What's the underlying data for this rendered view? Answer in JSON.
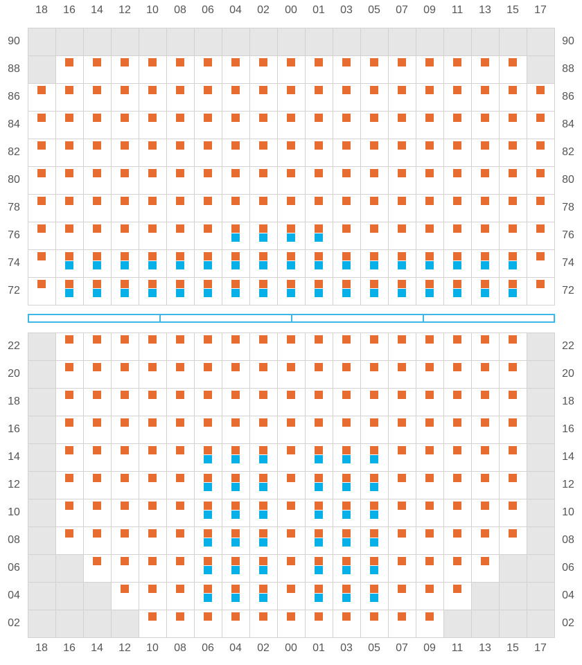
{
  "column_labels": [
    "18",
    "16",
    "14",
    "12",
    "10",
    "08",
    "06",
    "04",
    "02",
    "00",
    "01",
    "03",
    "05",
    "07",
    "09",
    "11",
    "13",
    "15",
    "17"
  ],
  "colors": {
    "grid_line": "#d2d2d2",
    "unavailable_cell": "#e6e6e7",
    "orange_marker": "#e86c30",
    "blue_marker": "#07b0e8",
    "aisle_outline": "#3db8e6",
    "label_text": "#555555"
  },
  "upper_section": {
    "rows": [
      {
        "label": "90",
        "inactive": [
          0,
          1,
          2,
          3,
          4,
          5,
          6,
          7,
          8,
          9,
          10,
          11,
          12,
          13,
          14,
          15,
          16,
          17,
          18
        ],
        "orange": [],
        "blue": []
      },
      {
        "label": "88",
        "inactive": [
          0,
          18
        ],
        "orange": [
          1,
          2,
          3,
          4,
          5,
          6,
          7,
          8,
          9,
          10,
          11,
          12,
          13,
          14,
          15,
          16,
          17
        ],
        "blue": []
      },
      {
        "label": "86",
        "inactive": [],
        "orange": [
          0,
          1,
          2,
          3,
          4,
          5,
          6,
          7,
          8,
          9,
          10,
          11,
          12,
          13,
          14,
          15,
          16,
          17,
          18
        ],
        "blue": []
      },
      {
        "label": "84",
        "inactive": [],
        "orange": [
          0,
          1,
          2,
          3,
          4,
          5,
          6,
          7,
          8,
          9,
          10,
          11,
          12,
          13,
          14,
          15,
          16,
          17,
          18
        ],
        "blue": []
      },
      {
        "label": "82",
        "inactive": [],
        "orange": [
          0,
          1,
          2,
          3,
          4,
          5,
          6,
          7,
          8,
          9,
          10,
          11,
          12,
          13,
          14,
          15,
          16,
          17,
          18
        ],
        "blue": []
      },
      {
        "label": "80",
        "inactive": [],
        "orange": [
          0,
          1,
          2,
          3,
          4,
          5,
          6,
          7,
          8,
          9,
          10,
          11,
          12,
          13,
          14,
          15,
          16,
          17,
          18
        ],
        "blue": []
      },
      {
        "label": "78",
        "inactive": [],
        "orange": [
          0,
          1,
          2,
          3,
          4,
          5,
          6,
          7,
          8,
          9,
          10,
          11,
          12,
          13,
          14,
          15,
          16,
          17,
          18
        ],
        "blue": []
      },
      {
        "label": "76",
        "inactive": [],
        "orange": [
          0,
          1,
          2,
          3,
          4,
          5,
          6,
          7,
          8,
          9,
          10,
          11,
          12,
          13,
          14,
          15,
          16,
          17,
          18
        ],
        "blue": [
          7,
          8,
          9,
          10
        ]
      },
      {
        "label": "74",
        "inactive": [],
        "orange": [
          0,
          1,
          2,
          3,
          4,
          5,
          6,
          7,
          8,
          9,
          10,
          11,
          12,
          13,
          14,
          15,
          16,
          17,
          18
        ],
        "blue": [
          1,
          2,
          3,
          4,
          5,
          6,
          7,
          8,
          9,
          10,
          11,
          12,
          13,
          14,
          15,
          16,
          17
        ]
      },
      {
        "label": "72",
        "inactive": [],
        "orange": [
          0,
          1,
          2,
          3,
          4,
          5,
          6,
          7,
          8,
          9,
          10,
          11,
          12,
          13,
          14,
          15,
          16,
          17,
          18
        ],
        "blue": [
          1,
          2,
          3,
          4,
          5,
          6,
          7,
          8,
          9,
          10,
          11,
          12,
          13,
          14,
          15,
          16,
          17
        ]
      }
    ]
  },
  "aisle": {
    "segments": 4
  },
  "lower_section": {
    "rows": [
      {
        "label": "22",
        "inactive": [
          0,
          18
        ],
        "orange": [
          1,
          2,
          3,
          4,
          5,
          6,
          7,
          8,
          9,
          10,
          11,
          12,
          13,
          14,
          15,
          16,
          17
        ],
        "blue": []
      },
      {
        "label": "20",
        "inactive": [
          0,
          18
        ],
        "orange": [
          1,
          2,
          3,
          4,
          5,
          6,
          7,
          8,
          9,
          10,
          11,
          12,
          13,
          14,
          15,
          16,
          17
        ],
        "blue": []
      },
      {
        "label": "18",
        "inactive": [
          0,
          18
        ],
        "orange": [
          1,
          2,
          3,
          4,
          5,
          6,
          7,
          8,
          9,
          10,
          11,
          12,
          13,
          14,
          15,
          16,
          17
        ],
        "blue": []
      },
      {
        "label": "16",
        "inactive": [
          0,
          18
        ],
        "orange": [
          1,
          2,
          3,
          4,
          5,
          6,
          7,
          8,
          9,
          10,
          11,
          12,
          13,
          14,
          15,
          16,
          17
        ],
        "blue": []
      },
      {
        "label": "14",
        "inactive": [
          0,
          18
        ],
        "orange": [
          1,
          2,
          3,
          4,
          5,
          6,
          7,
          8,
          9,
          10,
          11,
          12,
          13,
          14,
          15,
          16,
          17
        ],
        "blue": [
          6,
          7,
          8,
          10,
          11,
          12
        ]
      },
      {
        "label": "12",
        "inactive": [
          0,
          18
        ],
        "orange": [
          1,
          2,
          3,
          4,
          5,
          6,
          7,
          8,
          9,
          10,
          11,
          12,
          13,
          14,
          15,
          16,
          17
        ],
        "blue": [
          6,
          7,
          8,
          10,
          11,
          12
        ]
      },
      {
        "label": "10",
        "inactive": [
          0,
          18
        ],
        "orange": [
          1,
          2,
          3,
          4,
          5,
          6,
          7,
          8,
          9,
          10,
          11,
          12,
          13,
          14,
          15,
          16,
          17
        ],
        "blue": [
          6,
          7,
          8,
          10,
          11,
          12
        ]
      },
      {
        "label": "08",
        "inactive": [
          0,
          18
        ],
        "orange": [
          1,
          2,
          3,
          4,
          5,
          6,
          7,
          8,
          9,
          10,
          11,
          12,
          13,
          14,
          15,
          16,
          17
        ],
        "blue": [
          6,
          7,
          8,
          10,
          11,
          12
        ]
      },
      {
        "label": "06",
        "inactive": [
          0,
          1,
          17,
          18
        ],
        "orange": [
          2,
          3,
          4,
          5,
          6,
          7,
          8,
          9,
          10,
          11,
          12,
          13,
          14,
          15,
          16
        ],
        "blue": [
          6,
          7,
          8,
          10,
          11,
          12
        ]
      },
      {
        "label": "04",
        "inactive": [
          0,
          1,
          2,
          16,
          17,
          18
        ],
        "orange": [
          3,
          4,
          5,
          6,
          7,
          8,
          9,
          10,
          11,
          12,
          13,
          14,
          15
        ],
        "blue": [
          6,
          7,
          8,
          10,
          11,
          12
        ]
      },
      {
        "label": "02",
        "inactive": [
          0,
          1,
          2,
          3,
          15,
          16,
          17,
          18
        ],
        "orange": [
          4,
          5,
          6,
          7,
          8,
          9,
          10,
          11,
          12,
          13,
          14
        ],
        "blue": []
      }
    ]
  }
}
